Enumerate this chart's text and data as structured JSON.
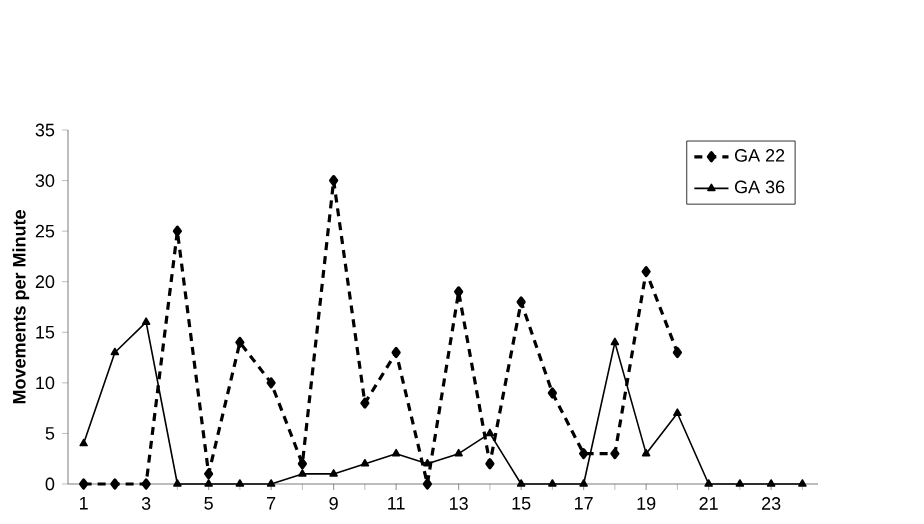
{
  "chart_data": {
    "type": "line",
    "ylabel": "Movements per Minute",
    "xlim": [
      0.5,
      24.5
    ],
    "ylim": [
      0,
      35
    ],
    "xticks": [
      1,
      3,
      5,
      7,
      9,
      11,
      13,
      15,
      17,
      19,
      21,
      23
    ],
    "yticks": [
      0,
      5,
      10,
      15,
      20,
      25,
      30,
      35
    ],
    "grid": false,
    "legend": "top right",
    "series": [
      {
        "name": "GA 22",
        "color": "#000000",
        "marker": "diamond",
        "line_style": "dashed",
        "x": [
          1,
          2,
          3,
          4,
          5,
          6,
          7,
          8,
          9,
          10,
          11,
          12,
          13,
          14,
          15,
          16,
          17,
          18,
          19,
          20
        ],
        "values": [
          0,
          0,
          0,
          25,
          1,
          14,
          10,
          2,
          30,
          8,
          13,
          0,
          19,
          2,
          18,
          9,
          3,
          3,
          21,
          13
        ]
      },
      {
        "name": "GA 36",
        "color": "#000000",
        "marker": "triangle",
        "line_style": "solid",
        "x": [
          1,
          2,
          3,
          4,
          5,
          6,
          7,
          8,
          9,
          10,
          11,
          12,
          13,
          14,
          15,
          16,
          17,
          18,
          19,
          20,
          21,
          22,
          23,
          24
        ],
        "values": [
          4,
          13,
          16,
          0,
          0,
          0,
          0,
          1,
          1,
          2,
          3,
          2,
          3,
          5,
          0,
          0,
          0,
          14,
          3,
          7,
          0,
          0,
          0,
          0
        ]
      }
    ]
  }
}
